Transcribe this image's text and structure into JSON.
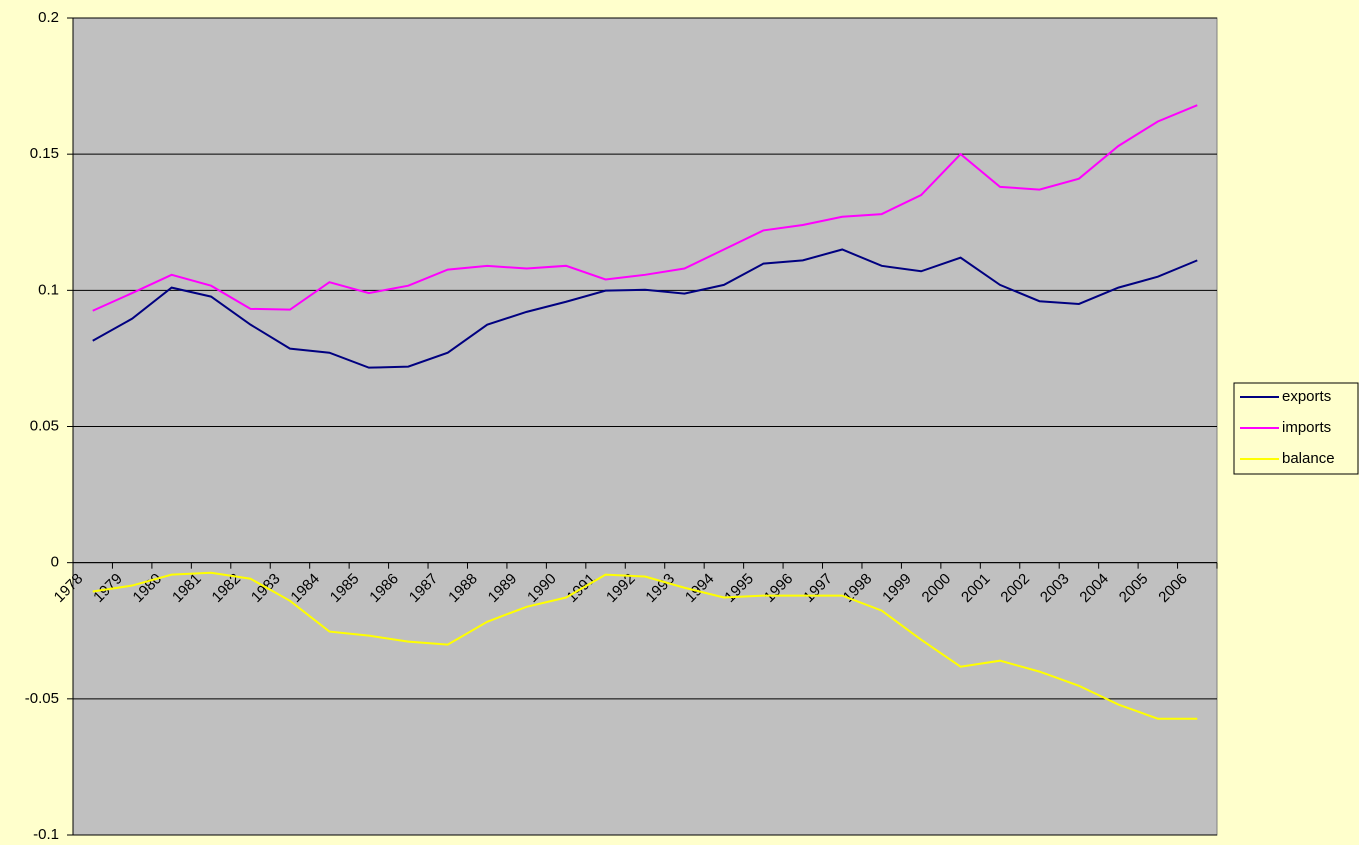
{
  "chart_data": {
    "type": "line",
    "categories": [
      "1978",
      "1979",
      "1980",
      "1981",
      "1982",
      "1983",
      "1984",
      "1985",
      "1986",
      "1987",
      "1988",
      "1989",
      "1990",
      "1991",
      "1992",
      "1993",
      "1994",
      "1995",
      "1996",
      "1997",
      "1998",
      "1999",
      "2000",
      "2001",
      "2002",
      "2003",
      "2004",
      "2005",
      "2006"
    ],
    "series": [
      {
        "name": "exports",
        "color": "#000080",
        "values": [
          0.0815,
          0.0896,
          0.101,
          0.0977,
          0.0874,
          0.0786,
          0.0771,
          0.0716,
          0.072,
          0.0771,
          0.0874,
          0.0921,
          0.0958,
          0.0999,
          0.1002,
          0.0988,
          0.102,
          0.1098,
          0.111,
          0.115,
          0.109,
          0.107,
          0.112,
          0.102,
          0.096,
          0.095,
          0.101,
          0.105,
          0.111
        ]
      },
      {
        "name": "imports",
        "color": "#ff00ff",
        "values": [
          0.0925,
          0.099,
          0.1057,
          0.1017,
          0.0932,
          0.0929,
          0.103,
          0.099,
          0.1017,
          0.1076,
          0.109,
          0.108,
          0.109,
          0.104,
          0.1057,
          0.108,
          0.115,
          0.122,
          0.124,
          0.127,
          0.128,
          0.135,
          0.15,
          0.138,
          0.137,
          0.141,
          0.153,
          0.162,
          0.168
        ]
      },
      {
        "name": "balance",
        "color": "#ffff00",
        "values": [
          -0.0106,
          -0.0084,
          -0.0044,
          -0.0037,
          -0.0059,
          -0.014,
          -0.0253,
          -0.0268,
          -0.029,
          -0.0301,
          -0.0217,
          -0.0162,
          -0.0128,
          -0.0044,
          -0.0051,
          -0.0092,
          -0.0128,
          -0.0121,
          -0.0121,
          -0.0121,
          -0.0176,
          -0.0283,
          -0.0382,
          -0.036,
          -0.04,
          -0.0452,
          -0.0521,
          -0.0573,
          -0.0573
        ]
      }
    ],
    "ylim": [
      -0.1,
      0.2
    ],
    "yticks": [
      -0.1,
      -0.05,
      0,
      0.05,
      0.1,
      0.15,
      0.2
    ],
    "grid": true,
    "plot_background": "#c0c0c0",
    "legend": "right"
  }
}
